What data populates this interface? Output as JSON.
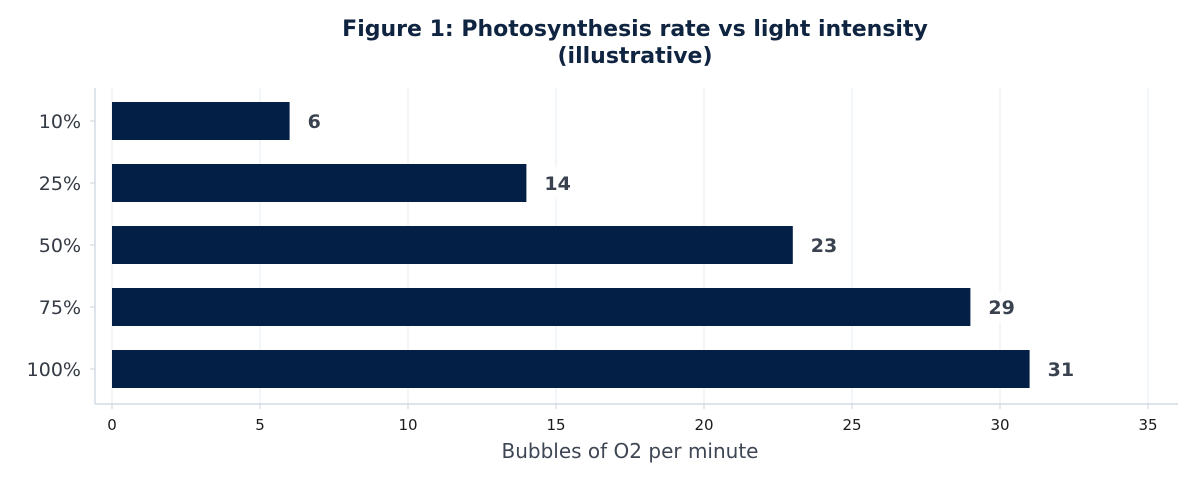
{
  "chart_data": {
    "type": "bar",
    "orientation": "horizontal",
    "title_line1": "Figure 1: Photosynthesis rate vs light intensity",
    "title_line2": "(illustrative)",
    "categories": [
      "10%",
      "25%",
      "50%",
      "75%",
      "100%"
    ],
    "values": [
      6,
      14,
      23,
      29,
      31
    ],
    "xlabel": "Bubbles of O2 per minute",
    "ylabel": "",
    "xlim": [
      0,
      35
    ],
    "xticks": [
      0,
      5,
      10,
      15,
      20,
      25,
      30,
      35
    ],
    "grid": "vertical",
    "show_value_labels": true,
    "colors": {
      "bar": "#041f45",
      "grid": "#e7ecf2",
      "axis": "#c9d3de",
      "title": "#0f2440"
    }
  }
}
